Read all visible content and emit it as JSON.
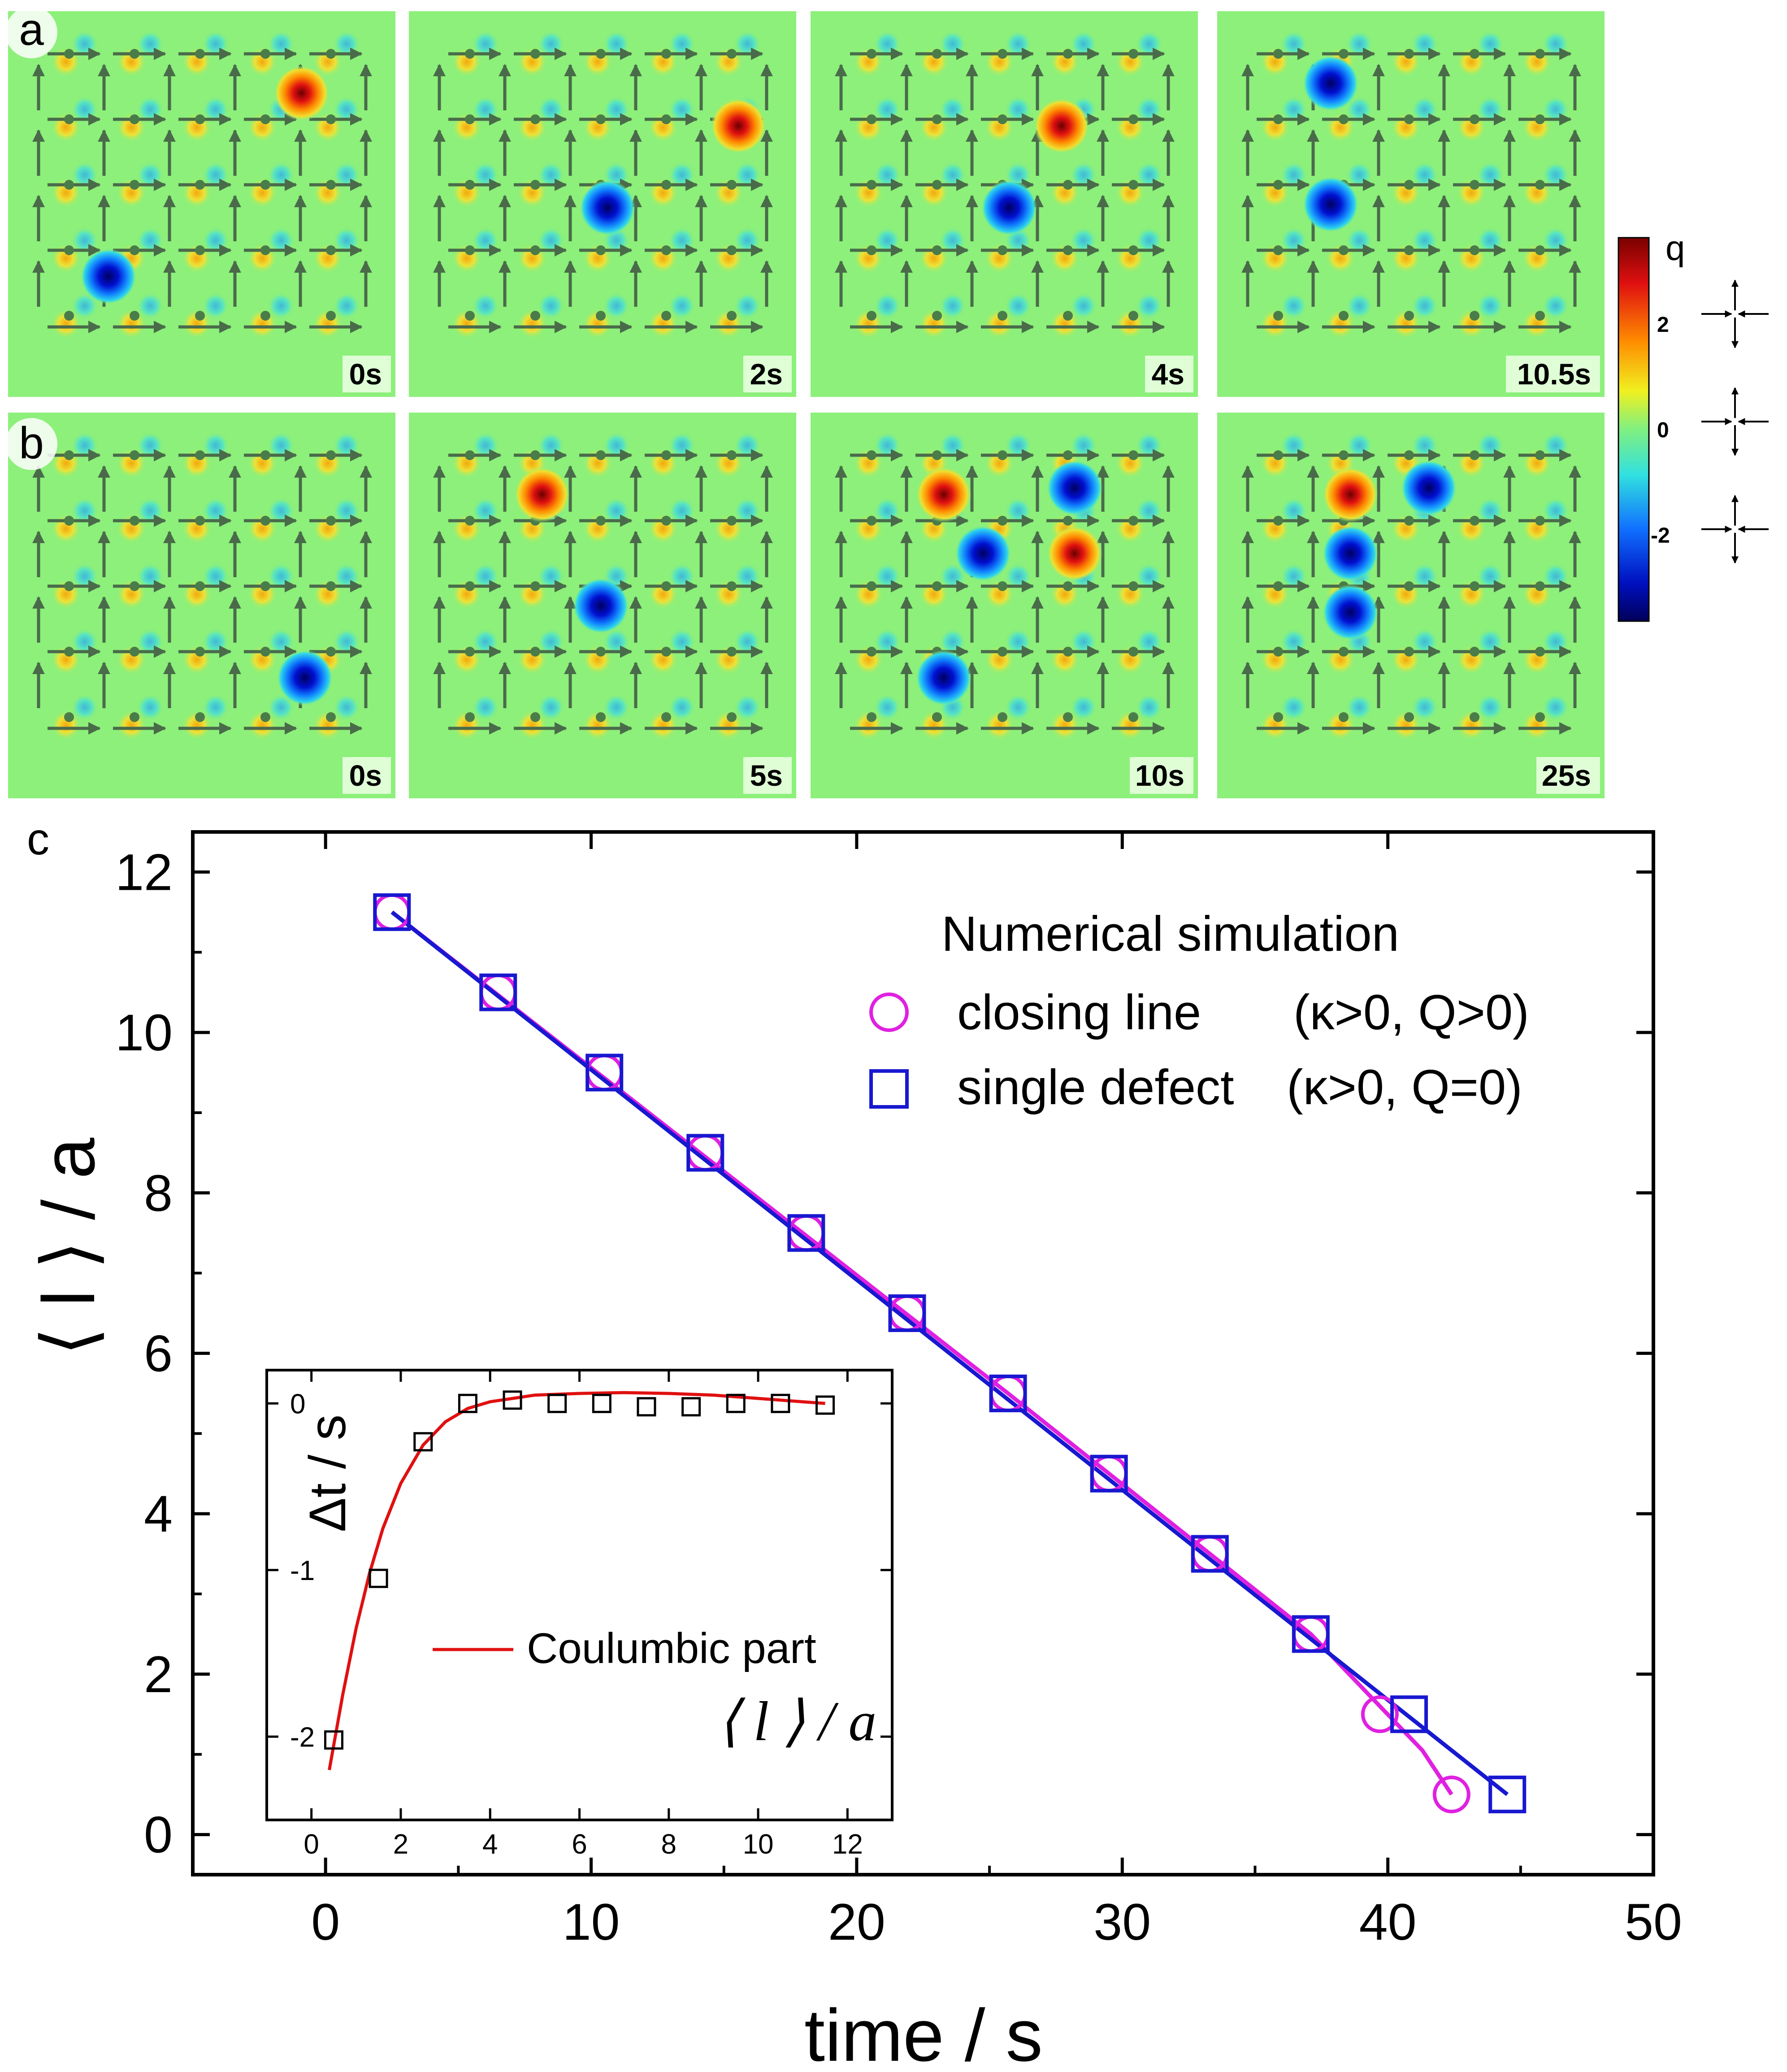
{
  "figure_id": "snapshot-sequences-and-decay-plot",
  "panels": {
    "a": {
      "label": "a",
      "frames": [
        {
          "time": "0s"
        },
        {
          "time": "2s"
        },
        {
          "time": "4s"
        },
        {
          "time": "10.5s"
        }
      ]
    },
    "b": {
      "label": "b",
      "frames": [
        {
          "time": "0s"
        },
        {
          "time": "5s"
        },
        {
          "time": "10s"
        },
        {
          "time": "25s"
        }
      ]
    }
  },
  "colorbar": {
    "title": "q",
    "ticks": [
      "2",
      "0",
      "-2"
    ]
  },
  "colors": {
    "background_green": "#8cf07a",
    "arrow_gray": "#4a6b4a",
    "arrow_red": "#f01010",
    "arrow_purple": "#7a28f0",
    "circle_magenta": "#e020e0",
    "square_blue": "#1818d0",
    "inset_line": "#e01010"
  },
  "chart_data": [
    {
      "type": "scatter",
      "panel_label": "c",
      "title": "",
      "xlabel": "time / s",
      "ylabel": "⟨ l ⟩ / a",
      "xlim": [
        -5,
        50
      ],
      "ylim": [
        -0.5,
        12.5
      ],
      "xticks": [
        "0",
        "10",
        "20",
        "30",
        "40",
        "50"
      ],
      "yticks": [
        "0",
        "2",
        "4",
        "6",
        "8",
        "10",
        "12"
      ],
      "legend": {
        "title": "Numerical simulation",
        "position": "top-right",
        "entries": [
          {
            "marker": "circle",
            "label": "closing line",
            "condition": "(κ>0, Q>0)"
          },
          {
            "marker": "square",
            "label": "single defect",
            "condition": "(κ>0, Q=0)"
          }
        ]
      },
      "series": [
        {
          "name": "closing line (κ>0, Q>0)",
          "marker": "circle",
          "x": [
            2.5,
            6.5,
            10.5,
            14.3,
            18.1,
            21.9,
            25.7,
            29.5,
            33.3,
            37.1,
            39.7,
            42.4
          ],
          "y": [
            11.5,
            10.5,
            9.5,
            8.5,
            7.5,
            6.5,
            5.5,
            4.5,
            3.5,
            2.5,
            1.5,
            0.5
          ]
        },
        {
          "name": "single defect (κ>0, Q=0)",
          "marker": "square",
          "x": [
            2.5,
            6.5,
            10.5,
            14.3,
            18.1,
            21.9,
            25.7,
            29.5,
            33.3,
            37.1,
            40.8,
            44.5
          ],
          "y": [
            11.5,
            10.5,
            9.5,
            8.5,
            7.5,
            6.5,
            5.5,
            4.5,
            3.5,
            2.5,
            1.5,
            0.5
          ]
        }
      ],
      "fit_lines": [
        {
          "name": "closing line fit",
          "x": [
            2.5,
            25.7,
            37.1,
            39.7,
            41.3,
            42.4
          ],
          "y": [
            11.5,
            5.5,
            2.5,
            1.6,
            1.05,
            0.5
          ]
        },
        {
          "name": "single defect fit",
          "x": [
            2.5,
            44.5
          ],
          "y": [
            11.5,
            0.5
          ]
        }
      ]
    },
    {
      "type": "scatter",
      "panel_label": "inset",
      "title": "",
      "xlabel": "⟨ l ⟩ / a",
      "ylabel": "Δt / s",
      "xlim": [
        -1,
        13
      ],
      "ylim": [
        -2.5,
        0.2
      ],
      "xticks": [
        "0",
        "2",
        "4",
        "6",
        "8",
        "10",
        "12"
      ],
      "yticks": [
        "-2",
        "-1",
        "0"
      ],
      "legend": {
        "entries": [
          {
            "marker": "line",
            "label": "Coulumbic part"
          }
        ],
        "position": "bottom-center"
      },
      "series": [
        {
          "name": "Δt",
          "marker": "square",
          "x": [
            0.5,
            1.5,
            2.5,
            3.5,
            4.5,
            5.5,
            6.5,
            7.5,
            8.5,
            9.5,
            10.5,
            11.5
          ],
          "y": [
            -2.02,
            -1.05,
            -0.23,
            0.0,
            0.02,
            0.0,
            0.0,
            -0.02,
            -0.02,
            0.0,
            0.0,
            -0.01
          ]
        },
        {
          "name": "Coulumbic part",
          "marker": "line",
          "x": [
            0.4,
            0.7,
            1.0,
            1.3,
            1.6,
            2.0,
            2.5,
            3.0,
            3.5,
            4.0,
            5.0,
            6.0,
            7.0,
            8.0,
            9.0,
            10.0,
            11.0,
            11.5
          ],
          "y": [
            -2.2,
            -1.75,
            -1.35,
            -1.02,
            -0.75,
            -0.48,
            -0.25,
            -0.11,
            -0.03,
            0.01,
            0.05,
            0.06,
            0.065,
            0.06,
            0.05,
            0.03,
            0.01,
            0.0
          ]
        }
      ]
    }
  ]
}
